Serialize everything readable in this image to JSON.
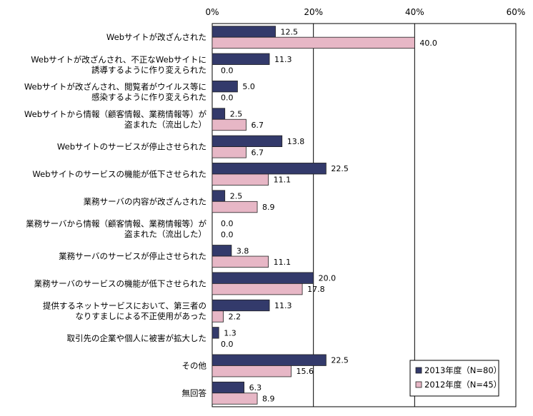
{
  "chart_data": {
    "type": "bar",
    "orientation": "horizontal",
    "title": "",
    "xlabel": "",
    "ylabel": "",
    "xlim": [
      0,
      60
    ],
    "ticks": [
      "0%",
      "20%",
      "40%",
      "60%"
    ],
    "tick_values": [
      0,
      20,
      40,
      60
    ],
    "grid": true,
    "legend_position": "bottom-right",
    "categories": [
      [
        "Webサイトが改ざんされた"
      ],
      [
        "Webサイトが改ざんされ、不正なWebサイトに",
        "誘導するように作り変えられた"
      ],
      [
        "Webサイトが改ざんされ、閲覧者がウイルス等に",
        "感染するように作り変えられた"
      ],
      [
        "Webサイトから情報（顧客情報、業務情報等）が",
        "盗まれた（流出した）"
      ],
      [
        "Webサイトのサービスが停止させられた"
      ],
      [
        "Webサイトのサービスの機能が低下させられた"
      ],
      [
        "業務サーバの内容が改ざんされた"
      ],
      [
        "業務サーバから情報（顧客情報、業務情報等）が",
        "盗まれた（流出した）"
      ],
      [
        "業務サーバのサービスが停止させられた"
      ],
      [
        "業務サーバのサービスの機能が低下させられた"
      ],
      [
        "提供するネットサービスにおいて、第三者の",
        "なりすましによる不正使用があった"
      ],
      [
        "取引先の企業や個人に被害が拡大した"
      ],
      [
        "その他"
      ],
      [
        "無回答"
      ]
    ],
    "series": [
      {
        "name": "2013年度（N=80）",
        "color": "#333a6b",
        "values": [
          12.5,
          11.3,
          5.0,
          2.5,
          13.8,
          22.5,
          2.5,
          0.0,
          3.8,
          20.0,
          11.3,
          1.3,
          22.5,
          6.3
        ],
        "labels": [
          "12.5",
          "11.3",
          "5.0",
          "2.5",
          "13.8",
          "22.5",
          "2.5",
          "0.0",
          "3.8",
          "20.0",
          "11.3",
          "1.3",
          "22.5",
          "6.3"
        ]
      },
      {
        "name": "2012年度（N=45）",
        "color": "#e7b7c6",
        "values": [
          40.0,
          0.0,
          0.0,
          6.7,
          6.7,
          11.1,
          8.9,
          0.0,
          11.1,
          17.8,
          2.2,
          0.0,
          15.6,
          8.9
        ],
        "labels": [
          "40.0",
          "0.0",
          "0.0",
          "6.7",
          "6.7",
          "11.1",
          "8.9",
          "0.0",
          "11.1",
          "17.8",
          "2.2",
          "0.0",
          "15.6",
          "8.9"
        ]
      }
    ]
  }
}
